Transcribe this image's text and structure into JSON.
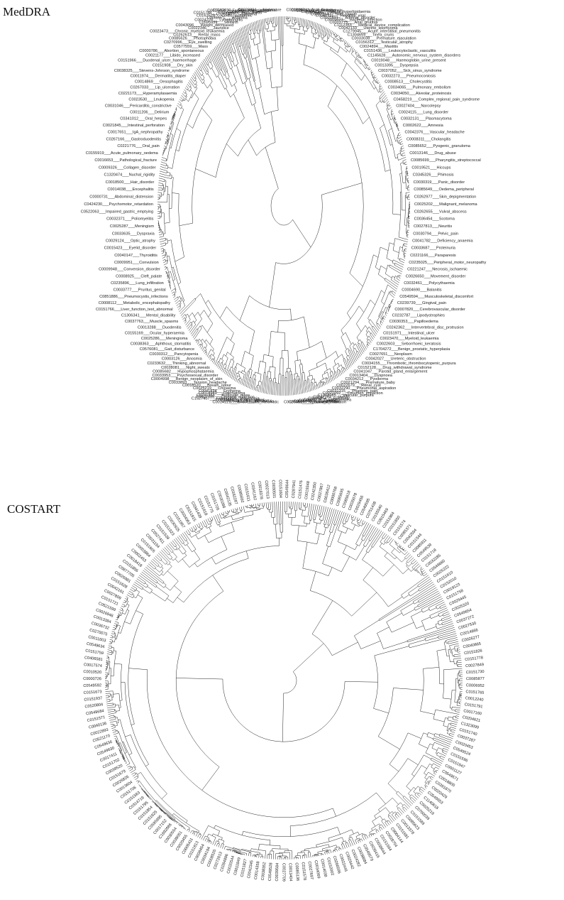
{
  "panels": [
    {
      "title": "MedDRA",
      "labels": [
        "C0016167___Anal_fissure",
        "C0020492___Hyperkeratosis",
        "C0016382___Flushing",
        "C0020482___Type_IV_hyperlipidaemia",
        "C0035455___Rhinitis",
        "C0007114___Skin_cancer",
        "C0042721___Hepatitis_viral",
        "C0001621___Adrenal_disorder",
        "C0004623___Bacterial_infection",
        "C0003775___Anal_pruritus",
        "C1112353___Medical_device_complication",
        "C0042133___Uterine_leiomyoma",
        "C1279945___Acute_interstitial_pneumonitis",
        "C1304659___Tinea_cruris",
        "C0033038___Premature_ejaculation",
        "C0156312___Testicular_atrophy",
        "C0024894___Mastitis",
        "C0151436___Leukocytoclastic_vasculitis",
        "C1145628___Autonomic_nervous_system_disorders",
        "C0019048___Haemoglobin_urine_present",
        "C0013395___Dyspepsia",
        "C0037052___Sick_sinus_syndrome",
        "C0032273___Pneumoconiosis",
        "C0008513___Cholecystitis",
        "C0034065___Pulmonary_embolism",
        "C0034050___Alveolar_proteinosis",
        "C0458219___Complex_regional_pain_syndrome",
        "C0027404___Narcolepsy",
        "C0024115___Lung_disorder",
        "C0032131___Plasmacytoma",
        "C0002622___Amnesia",
        "C0042376___Vascular_headache",
        "C0008311___Cholangitis",
        "C0085652___Pyogenic_granuloma",
        "C0013146___Drug_abuse",
        "C0085699___Pharyngitis_streptococcal",
        "C0019521___Hiccups",
        "C0345326___Phimosis",
        "C0030319___Panic_disorder",
        "C0085649___Oedema_peripheral",
        "C0262977___Skin_depigmentation",
        "C0025202___Malignant_melanoma",
        "C0262655___Vulval_abscess",
        "C0036454___Scotoma",
        "C0027813___Neuritis",
        "C0030794___Pelvic_pain",
        "C0041782___Deficiency_anaemia",
        "C0033687___Proteinuria",
        "C0221166___Paraparesis",
        "C0235025___Peripheral_motor_neuropathy",
        "C0221247___Necrosis_ischaemic",
        "C0026650___Movement_disorder",
        "C0032461___Polycythaemia",
        "C0004690___Balanitis",
        "C0549594___Musculoskeletal_discomfort",
        "C0239739___Gingival_pain",
        "C0007820___Cerebrovascular_disorder",
        "C0232787___Lipodystrophies",
        "C0030353___Papilloedema",
        "C0242362___Intervertebral_disc_protrusion",
        "C0151971___Intestinal_ulcer",
        "C0023470___Myeloid_leukaemia",
        "C0022603___Seborrhoeic_keratosis",
        "C1704272___Benign_prostatic_hyperplasia",
        "C0027651___Neoplasm",
        "C0042027___Ureteric_obstruction",
        "C0034155___Thrombotic_thrombocytopenic_purpura",
        "C0152128___Drug_withdrawal_syndrome",
        "C0341047___Parotid_gland_enlargement",
        "C0013404___Dyspnoea",
        "C0034212___Pyoderma",
        "C0021294___Premature_baby",
        "C0022679___Renal_cyst",
        "C0032290___Pneumonia_aspiration",
        "C0031315___Phantom_pain",
        "C0021092___Cerumen_impaction",
        "C1368085___Vascular_purpura",
        "C0042164___Uveitis",
        "C0035854___Rosacea",
        "C0038238___Steatorrhoea",
        "C0040822___Tremor",
        "C0006840___Candidiasis",
        "C0040247___Tinea_infection",
        "C0027051___Myocardial_infarction",
        "C0014121___Endocarditis_rheumatic",
        "C0022073___Iridocyclitis",
        "C0899744___Ear_infection",
        "C0030464___Extrasystoles",
        "C1527407___Eosinophilic_pneumonia",
        "C0007785___Cerebral_infarction",
        "C0241353___Testicular_mass",
        "C0018989___Haematoma",
        "C0041834___Erythema",
        "C0025219___Chloasma",
        "C0018520___Breath_odour",
        "C0033893___Tension_headache",
        "C0004998___Benign_neoplasm_of_skin",
        "C0033953___Psychosexual_disorder",
        "C0085682___Hypophosphataemia",
        "C0028081___Night_sweats",
        "C0233632___Thinking_abnormal",
        "C0003126___Anosmia",
        "C0030312___Pancytopenia",
        "C0576081___Gait_disturbance",
        "C0038363___Aphthous_stomatitis",
        "C0025286___Meningioma",
        "C0155169___Ocular_hyperaemia",
        "C0013288___Duodenitis",
        "C0037763___Muscle_spasms",
        "C1306341___Mental_disability",
        "C0151766___Liver_function_test_abnormal",
        "C0008112___Metabolic_encephalopathy",
        "C0851886___Pneumocystis_infections",
        "C0033777___Pruritus_genital",
        "C0235896___Lung_infiltration",
        "C0008925___Cleft_palate",
        "C0009948___Conversion_disorder",
        "C0009951___Convulsion",
        "C0040147___Thyroiditis",
        "C0015423___Eyelid_disorder",
        "C0029124___Optic_atrophy",
        "C0033635___Dyspraxia",
        "C0025287___Meningism",
        "C0032371___Poliomyelitis",
        "C0522063___Impaired_gastric_emptying",
        "C0424230___Psychomotor_retardation",
        "C0000731___Abdominal_distension",
        "C0014038___Encephalitis",
        "C0018500___Hair_disorder",
        "C1320474___Nuchal_rigidity",
        "C0009326___Collagen_disorder",
        "C0016653___Pathological_fracture",
        "C0155919___Acute_pulmonary_oedema",
        "C0221776___Oral_pain",
        "C0267166___Gastroduodenitis",
        "C0017651___IgA_nephropathy",
        "C0021845___Intestinal_perforation",
        "C0341012___Oral_herpes",
        "C0011206___Delirium",
        "C0031046___Pericarditis_constrictive",
        "C0023530___Leukopenia",
        "C0221173___Hyperamylasaemia",
        "C0267033___Lip_ulceration",
        "C0014869___Oesophagitis",
        "C0011974___Dermatitis_diaper",
        "C0038325___Stevens-Johnson_syndrome",
        "C0151908___Dry_skin",
        "C0151966___Duodenal_ulcer_haemorrhage",
        "C0021177___Libido_increased",
        "C0000786___Abortion_spontaneous",
        "C0577559___Mass",
        "C0270996___Eye_swelling",
        "C0085626___Photophobia",
        "C0262613___Renal_mass",
        "C0023473___Chronic_myeloid_leukaemia",
        "C0022346___Jaundice",
        "C0043096___Weight_decreased",
        "C0595939___Stillbirth",
        "C0024228___Lymphangitis",
        "C0002871___Anaemia",
        "C0162529___Colitis_ischaemic",
        "C1261473___Sarcoma",
        "C0151788___Eosinophilic_myocarditis",
        "C0013595___Eczema",
        "C0015464___Facial_nerve_disorder",
        "C0152030___Skin_odour_abnormal",
        "C0028084___Nightmare"
      ]
    },
    {
      "title": "COSTART",
      "labels": [
        "C0549644",
        "C0287941",
        "C0151476",
        "C0019348",
        "C0242350",
        "C0027867",
        "C0036412",
        "C0000768",
        "C0085695",
        "C0085618",
        "C0035078",
        "C0029456",
        "C0549595",
        "C0751438",
        "C0155540",
        "C0015469",
        "C0151984",
        "C0151650",
        "C0151574",
        "C0085371",
        "C0042594",
        "C0151544",
        "C0085911",
        "C0549539",
        "C0151718",
        "C0032285",
        "C0549660",
        "C0025222",
        "C0151610",
        "C0152010",
        "C0019123",
        "C0151758",
        "C0029445",
        "C0025320",
        "C0549654",
        "C0037272",
        "C0027530",
        "C0014866",
        "C0026277",
        "C0040865",
        "C0151826",
        "C0151778",
        "C0027849",
        "C0151730",
        "C0085877",
        "C0006952",
        "C0151765",
        "C0012240",
        "C0151791",
        "C0017160",
        "C0204621",
        "C1323099",
        "C0151740",
        "C0037287",
        "C0020453",
        "C0549524",
        "C0151596",
        "C0151947",
        "C0001127",
        "C0549571",
        "C0018800",
        "C0391870",
        "C0020429",
        "C0549653",
        "C1140618",
        "C0025219",
        "C0700039",
        "C0151589",
        "C0085623",
        "C0013378",
        "C0151681",
        "C0004144",
        "C0028754",
        "C0151584",
        "C0038644",
        "C0035416",
        "C0549579",
        "C0038684",
        "C0024282",
        "C0029442",
        "C0022446",
        "C0266596",
        "C0152002",
        "C0014038",
        "C0034069",
        "C0027697",
        "C0151578",
        "C0085136",
        "C0013404",
        "C0027709",
        "C0039584",
        "C0549528",
        "C0038352",
        "C0014358",
        "C0042345",
        "C0151827",
        "C0011849",
        "C0020544",
        "C0284896",
        "C0272013",
        "C0008526",
        "C0034194",
        "C0038454",
        "C0151813",
        "C0005411",
        "C0020455",
        "C0039051",
        "C0030554",
        "C1692886",
        "C0017152",
        "C0595995",
        "C0151825",
        "C0151854",
        "C0151795",
        "C0314719",
        "C0151563",
        "C0151706",
        "C0013604",
        "C0026826",
        "C0151679",
        "C0039520",
        "C0151702",
        "C0017411",
        "C0549630",
        "C0549636",
        "C0521170",
        "C0022893",
        "C0040136",
        "C0151571",
        "C0549684",
        "C0520804",
        "C0151937",
        "C0151673",
        "C0549592",
        "C0000726",
        "C0010520",
        "C0017574",
        "C0406581",
        "C0151759",
        "C0549634",
        "C0011603",
        "C0270075",
        "C0036732",
        "C0013384",
        "C0026946",
        "C0521599",
        "C0151721",
        "C0027809",
        "C0042161",
        "C0151628",
        "C0026981",
        "C0877705",
        "C0151856",
        "C0018418",
        "C0002453",
        "C0003864",
        "C0151605",
        "C0031154",
        "C0527411",
        "C0151539",
        "C0151923",
        "C0030925",
        "C0151857",
        "C0034063",
        "C0151815",
        "C0341439",
        "C0151618",
        "C0151775",
        "C0151726",
        "C0030288",
        "C0042135",
        "C0162287",
        "C0085692",
        "C0151611",
        "C0341162",
        "C0018378",
        "C0027013",
        "C0030501",
        "C0151604"
      ]
    }
  ]
}
